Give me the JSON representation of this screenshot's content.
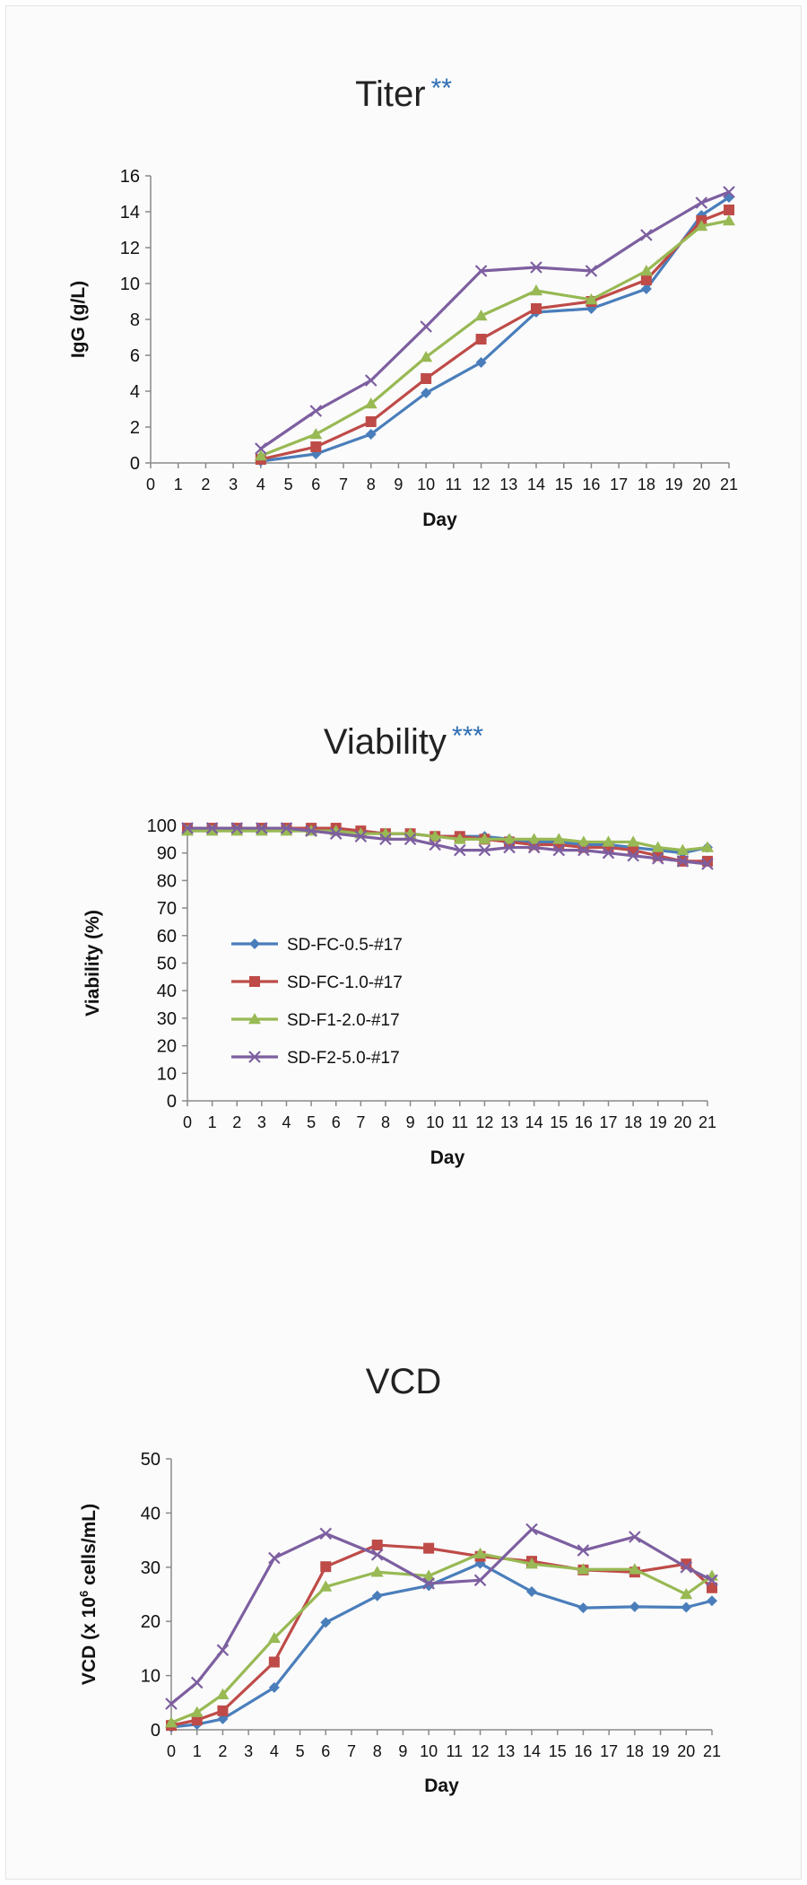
{
  "colors": {
    "SD-FC-0.5-#17": "#4a7ebb",
    "SD-FC-1.0-#17": "#be4b48",
    "SD-F1-2.0-#17": "#98b954",
    "SD-F2-5.0-#17": "#7d5fa0",
    "stars": "#2e6db4"
  },
  "chart_data": [
    {
      "type": "line",
      "title": "Titer",
      "title_marker": "**",
      "xlabel": "Day",
      "ylabel": "IgG (g/L)",
      "xticks": [
        0,
        1,
        2,
        3,
        4,
        5,
        6,
        7,
        8,
        9,
        10,
        11,
        12,
        13,
        14,
        15,
        16,
        17,
        18,
        19,
        20,
        21
      ],
      "ylim": [
        0,
        16
      ],
      "yticks": [
        0,
        2,
        4,
        6,
        8,
        10,
        12,
        14,
        16
      ],
      "x": [
        4,
        6,
        8,
        10,
        12,
        14,
        16,
        18,
        20,
        21
      ],
      "series": [
        {
          "name": "SD-FC-0.5-#17",
          "marker": "diamond",
          "values": [
            0.1,
            0.5,
            1.6,
            3.9,
            5.6,
            8.4,
            8.6,
            9.7,
            13.8,
            14.8
          ]
        },
        {
          "name": "SD-FC-1.0-#17",
          "marker": "square",
          "values": [
            0.2,
            0.9,
            2.3,
            4.7,
            6.9,
            8.6,
            9.0,
            10.2,
            13.5,
            14.1
          ]
        },
        {
          "name": "SD-F1-2.0-#17",
          "marker": "triangle",
          "values": [
            0.4,
            1.6,
            3.3,
            5.9,
            8.2,
            9.6,
            9.1,
            10.7,
            13.2,
            13.5
          ]
        },
        {
          "name": "SD-F2-5.0-#17",
          "marker": "x",
          "values": [
            0.8,
            2.9,
            4.6,
            7.6,
            10.7,
            10.9,
            10.7,
            12.7,
            14.5,
            15.1
          ]
        }
      ]
    },
    {
      "type": "line",
      "title": "Viability",
      "title_marker": "***",
      "xlabel": "Day",
      "ylabel": "Viability (%)",
      "xticks": [
        0,
        1,
        2,
        3,
        4,
        5,
        6,
        7,
        8,
        9,
        10,
        11,
        12,
        13,
        14,
        15,
        16,
        17,
        18,
        19,
        20,
        21
      ],
      "ylim": [
        0,
        100
      ],
      "yticks": [
        0,
        10,
        20,
        30,
        40,
        50,
        60,
        70,
        80,
        90,
        100
      ],
      "x": [
        0,
        1,
        2,
        3,
        4,
        5,
        6,
        7,
        8,
        9,
        10,
        11,
        12,
        13,
        14,
        15,
        16,
        17,
        18,
        19,
        20,
        21
      ],
      "legend": [
        "SD-FC-0.5-#17",
        "SD-FC-1.0-#17",
        "SD-F1-2.0-#17",
        "SD-F2-5.0-#17"
      ],
      "series": [
        {
          "name": "SD-FC-0.5-#17",
          "marker": "diamond",
          "values": [
            99,
            99,
            99,
            99,
            99,
            99,
            98,
            98,
            97,
            97,
            96,
            96,
            96,
            95,
            94,
            94,
            93,
            93,
            92,
            91,
            90,
            92
          ]
        },
        {
          "name": "SD-FC-1.0-#17",
          "marker": "square",
          "values": [
            99,
            99,
            99,
            99,
            99,
            99,
            99,
            98,
            97,
            97,
            96,
            96,
            95,
            94,
            93,
            93,
            92,
            92,
            91,
            89,
            87,
            87
          ]
        },
        {
          "name": "SD-F1-2.0-#17",
          "marker": "triangle",
          "values": [
            98,
            98,
            98,
            98,
            98,
            98,
            98,
            97,
            97,
            97,
            96,
            95,
            95,
            95,
            95,
            95,
            94,
            94,
            94,
            92,
            91,
            92
          ]
        },
        {
          "name": "SD-F2-5.0-#17",
          "marker": "x",
          "values": [
            99,
            99,
            99,
            99,
            99,
            98,
            97,
            96,
            95,
            95,
            93,
            91,
            91,
            92,
            92,
            91,
            91,
            90,
            89,
            88,
            87,
            86
          ]
        }
      ]
    },
    {
      "type": "line",
      "title": "VCD",
      "xlabel": "Day",
      "ylabel_prefix": "VCD (x 10",
      "ylabel_sup": "6",
      "ylabel_suffix": " cells/mL)",
      "xticks": [
        0,
        1,
        2,
        3,
        4,
        5,
        6,
        7,
        8,
        9,
        10,
        11,
        12,
        13,
        14,
        15,
        16,
        17,
        18,
        19,
        20,
        21
      ],
      "ylim": [
        0,
        50
      ],
      "yticks": [
        0,
        10,
        20,
        30,
        40,
        50
      ],
      "x": [
        0,
        1,
        2,
        4,
        6,
        8,
        10,
        12,
        14,
        16,
        18,
        20,
        21
      ],
      "series": [
        {
          "name": "SD-FC-0.5-#17",
          "marker": "diamond",
          "values": [
            0.5,
            1.0,
            2.0,
            7.8,
            19.8,
            24.7,
            26.6,
            30.7,
            25.5,
            22.5,
            22.7,
            22.6,
            23.8
          ]
        },
        {
          "name": "SD-FC-1.0-#17",
          "marker": "square",
          "values": [
            0.8,
            1.8,
            3.5,
            12.5,
            30.1,
            34.1,
            33.5,
            32.0,
            31.1,
            29.5,
            29.1,
            30.6,
            26.2
          ]
        },
        {
          "name": "SD-F1-2.0-#17",
          "marker": "triangle",
          "values": [
            1.3,
            3.2,
            6.5,
            16.9,
            26.4,
            29.1,
            28.4,
            32.5,
            30.6,
            29.6,
            29.6,
            25.0,
            28.4
          ]
        },
        {
          "name": "SD-F2-5.0-#17",
          "marker": "x",
          "values": [
            4.8,
            8.7,
            14.7,
            31.7,
            36.2,
            32.3,
            27.0,
            27.6,
            37.0,
            33.1,
            35.6,
            30.0,
            27.6
          ]
        }
      ]
    }
  ]
}
